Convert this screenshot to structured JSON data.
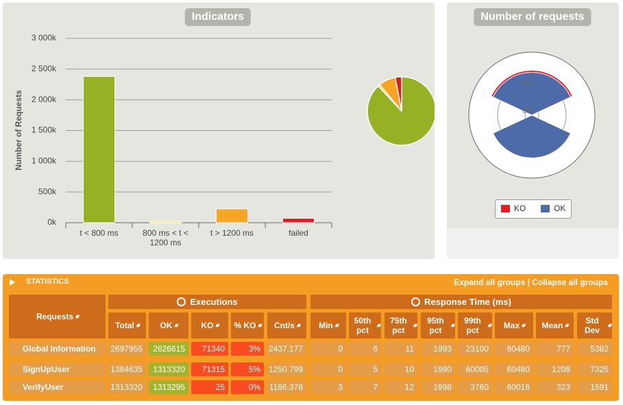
{
  "indicators": {
    "type": "bar",
    "title": "Indicators",
    "y_label": "Number of Requests",
    "categories": [
      "t < 800 ms",
      "800 ms < t < 1200 ms",
      "t > 1200 ms",
      "failed"
    ],
    "values": [
      2380000,
      22000,
      224615,
      71340
    ],
    "colors": [
      "#96b124",
      "#f5d82b",
      "#f7a525",
      "#e8181d"
    ],
    "ylim": [
      0,
      3000000
    ],
    "yticks": [
      {
        "value": 0,
        "label": "0k"
      },
      {
        "value": 500000,
        "label": "500k"
      },
      {
        "value": 1000000,
        "label": "1 000k"
      },
      {
        "value": 1500000,
        "label": "1 500k"
      },
      {
        "value": 2000000,
        "label": "2 000k"
      },
      {
        "value": 2500000,
        "label": "2 500k"
      },
      {
        "value": 3000000,
        "label": "3 000k"
      }
    ],
    "grid": true
  },
  "pie": {
    "type": "pie",
    "values": [
      88,
      1,
      8,
      3
    ],
    "colors": [
      "#96b124",
      "#f5d82b",
      "#f7a525",
      "#e8181d"
    ]
  },
  "requests": {
    "type": "polar",
    "title": "Number of requests",
    "series": [
      {
        "name": "KO",
        "color": "#f0171d",
        "values": [
          71315,
          25
        ]
      },
      {
        "name": "OK",
        "color": "#4d6ba8",
        "values": [
          1313320,
          1313295
        ]
      }
    ],
    "rlim": [
      0,
      2000000
    ],
    "rticks": [
      {
        "value": 0,
        "label": "0M"
      },
      {
        "value": 1000000,
        "label": "1M"
      }
    ]
  },
  "statistics": {
    "title": "STATISTICS",
    "expand": "Expand all groups",
    "separator": "|",
    "collapse": "Collapse all groups",
    "groups": [
      "Executions",
      "Response Time (ms)"
    ],
    "columns": [
      "Requests",
      "Total",
      "OK",
      "KO",
      "% KO",
      "Cnt/s",
      "Min",
      "50th pct",
      "75th pct",
      "95th pct",
      "99th pct",
      "Max",
      "Mean",
      "Std Dev"
    ],
    "rows": [
      [
        "Global Information",
        "2697955",
        "2626615",
        "71340",
        "3%",
        "2437.177",
        "0",
        "6",
        "11",
        "1993",
        "23100",
        "60480",
        "777",
        "5382"
      ],
      [
        "SignUpUser",
        "1384635",
        "1313320",
        "71315",
        "5%",
        "1250.799",
        "0",
        "5",
        "10",
        "1990",
        "60005",
        "60480",
        "1208",
        "7325"
      ],
      [
        "VerifyUser",
        "1313320",
        "1313295",
        "25",
        "0%",
        "1186.378",
        "3",
        "7",
        "12",
        "1998",
        "3760",
        "60016",
        "323",
        "1591"
      ]
    ]
  }
}
